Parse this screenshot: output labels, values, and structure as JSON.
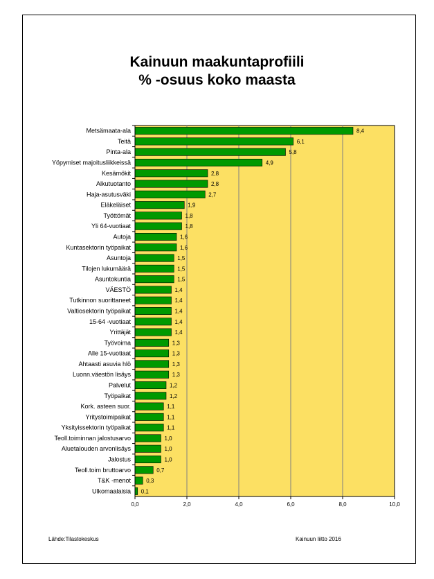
{
  "colors": {
    "plot_background": "#fce063",
    "bar": "#009900",
    "gridline": "#808080",
    "frame": "#000000"
  },
  "chart_data": {
    "type": "bar",
    "orientation": "horizontal",
    "title": "Kainuun maakuntaprofiili",
    "subtitle": "% -osuus koko maasta",
    "categories": [
      "Metsämaata-ala",
      "Teitä",
      "Pinta-ala",
      "Yöpymiset majoitusliikkeissä",
      "Kesämökit",
      "Alkutuotanto",
      "Haja-asutusväki",
      "Eläkeläiset",
      "Työttömät",
      "Yli 64-vuotiaat",
      "Autoja",
      "Kuntasektorin työpaikat",
      "Asuntoja",
      "Tilojen lukumäärä",
      "Asuntokuntia",
      "VÄESTÖ",
      "Tutkinnon suorittaneet",
      "Valtiosektorin työpaikat",
      "15-64 -vuotiaat",
      "Yrittäjät",
      "Työvoima",
      "Alle 15-vuotiaat",
      "Ahtaasti asuvia hlö",
      "Luonn.väestön lisäys",
      "Palvelut",
      "Työpaikat",
      "Kork. asteen suor.",
      "Yritystoimipaikat",
      "Yksityissektorin työpaikat",
      "Teoll.toiminnan jalostusarvo",
      "Aluetalouden arvonlisäys",
      "Jalostus",
      "Teoll.toim bruttoarvo",
      "T&K -menot",
      "Ulkomaalaisia"
    ],
    "values": [
      8.4,
      6.1,
      5.8,
      4.9,
      2.8,
      2.8,
      2.7,
      1.9,
      1.8,
      1.8,
      1.6,
      1.6,
      1.5,
      1.5,
      1.5,
      1.4,
      1.4,
      1.4,
      1.4,
      1.4,
      1.3,
      1.3,
      1.3,
      1.3,
      1.2,
      1.2,
      1.1,
      1.1,
      1.1,
      1.0,
      1.0,
      1.0,
      0.7,
      0.3,
      0.1
    ],
    "value_labels": [
      "8,4",
      "6,1",
      "5,8",
      "4,9",
      "2,8",
      "2,8",
      "2,7",
      "1,9",
      "1,8",
      "1,8",
      "1,6",
      "1,6",
      "1,5",
      "1,5",
      "1,5",
      "1,4",
      "1,4",
      "1,4",
      "1,4",
      "1,4",
      "1,3",
      "1,3",
      "1,3",
      "1,3",
      "1,2",
      "1,2",
      "1,1",
      "1,1",
      "1,1",
      "1,0",
      "1,0",
      "1,0",
      "0,7",
      "0,3",
      "0,1"
    ],
    "xlim": [
      0,
      10
    ],
    "xticks": [
      0,
      2,
      4,
      6,
      8,
      10
    ],
    "xtick_labels": [
      "0,0",
      "2,0",
      "4,0",
      "6,0",
      "8,0",
      "10,0"
    ],
    "grid": true,
    "legend": "none"
  },
  "footer": {
    "source": "Lähde:Tilastokeskus",
    "credit": "Kainuun liitto 2016"
  }
}
